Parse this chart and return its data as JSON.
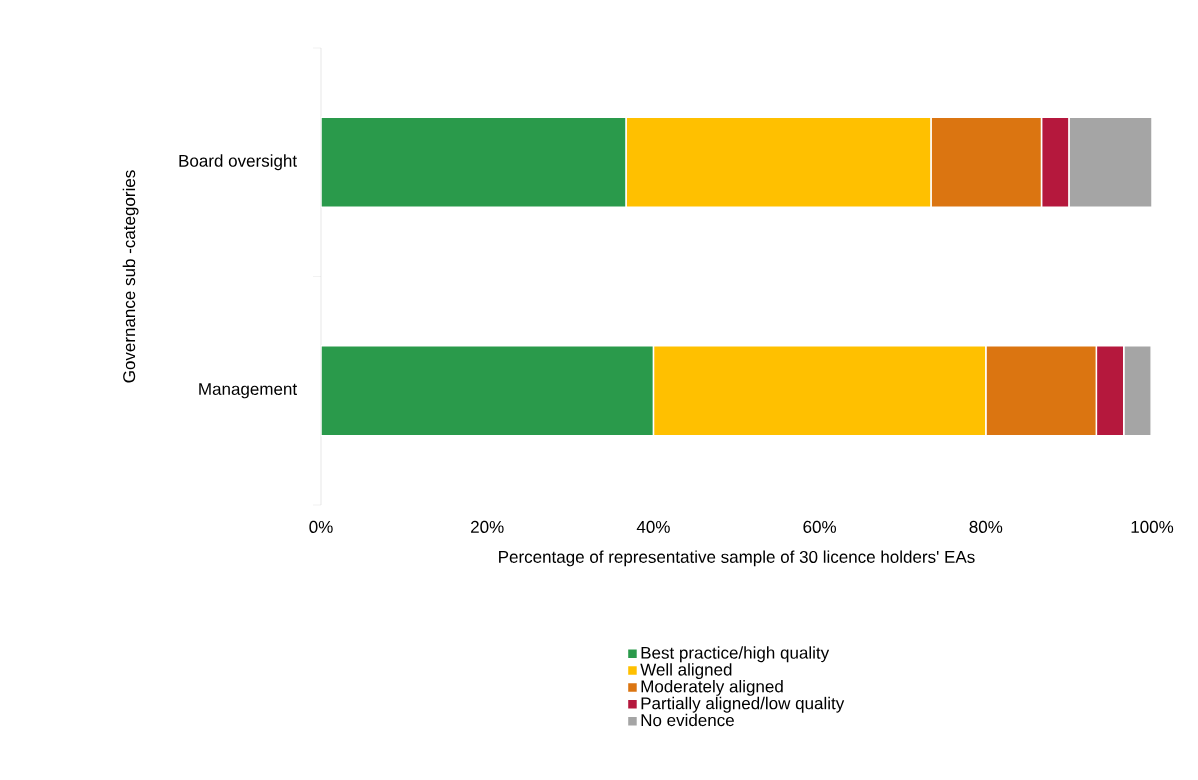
{
  "chart_data": {
    "type": "bar",
    "orientation": "horizontal",
    "stacked": true,
    "categories": [
      "Board oversight",
      "Management"
    ],
    "series": [
      {
        "name": "Best practice/high quality",
        "color": "#2a9a4b",
        "values": [
          36.7,
          40
        ]
      },
      {
        "name": "Well aligned",
        "color": "#ffc000",
        "values": [
          36.7,
          40
        ]
      },
      {
        "name": "Moderately aligned",
        "color": "#db7511",
        "values": [
          13.3,
          13.3
        ]
      },
      {
        "name": "Partially aligned/low quality",
        "color": "#b5183d",
        "values": [
          3.3,
          3.3
        ]
      },
      {
        "name": "No evidence",
        "color": "#a5a5a5",
        "values": [
          10,
          3.3
        ]
      }
    ],
    "xlim": [
      0,
      100
    ],
    "xticks": [
      {
        "value": 0,
        "label": "0%"
      },
      {
        "value": 20,
        "label": "20%"
      },
      {
        "value": 40,
        "label": "40%"
      },
      {
        "value": 60,
        "label": "60%"
      },
      {
        "value": 80,
        "label": "80%"
      },
      {
        "value": 100,
        "label": "100%"
      }
    ],
    "xlabel": "Percentage of representative sample of 30 licence holders' EAs",
    "ylabel": "Governance sub -categories",
    "legend": "bottom"
  }
}
